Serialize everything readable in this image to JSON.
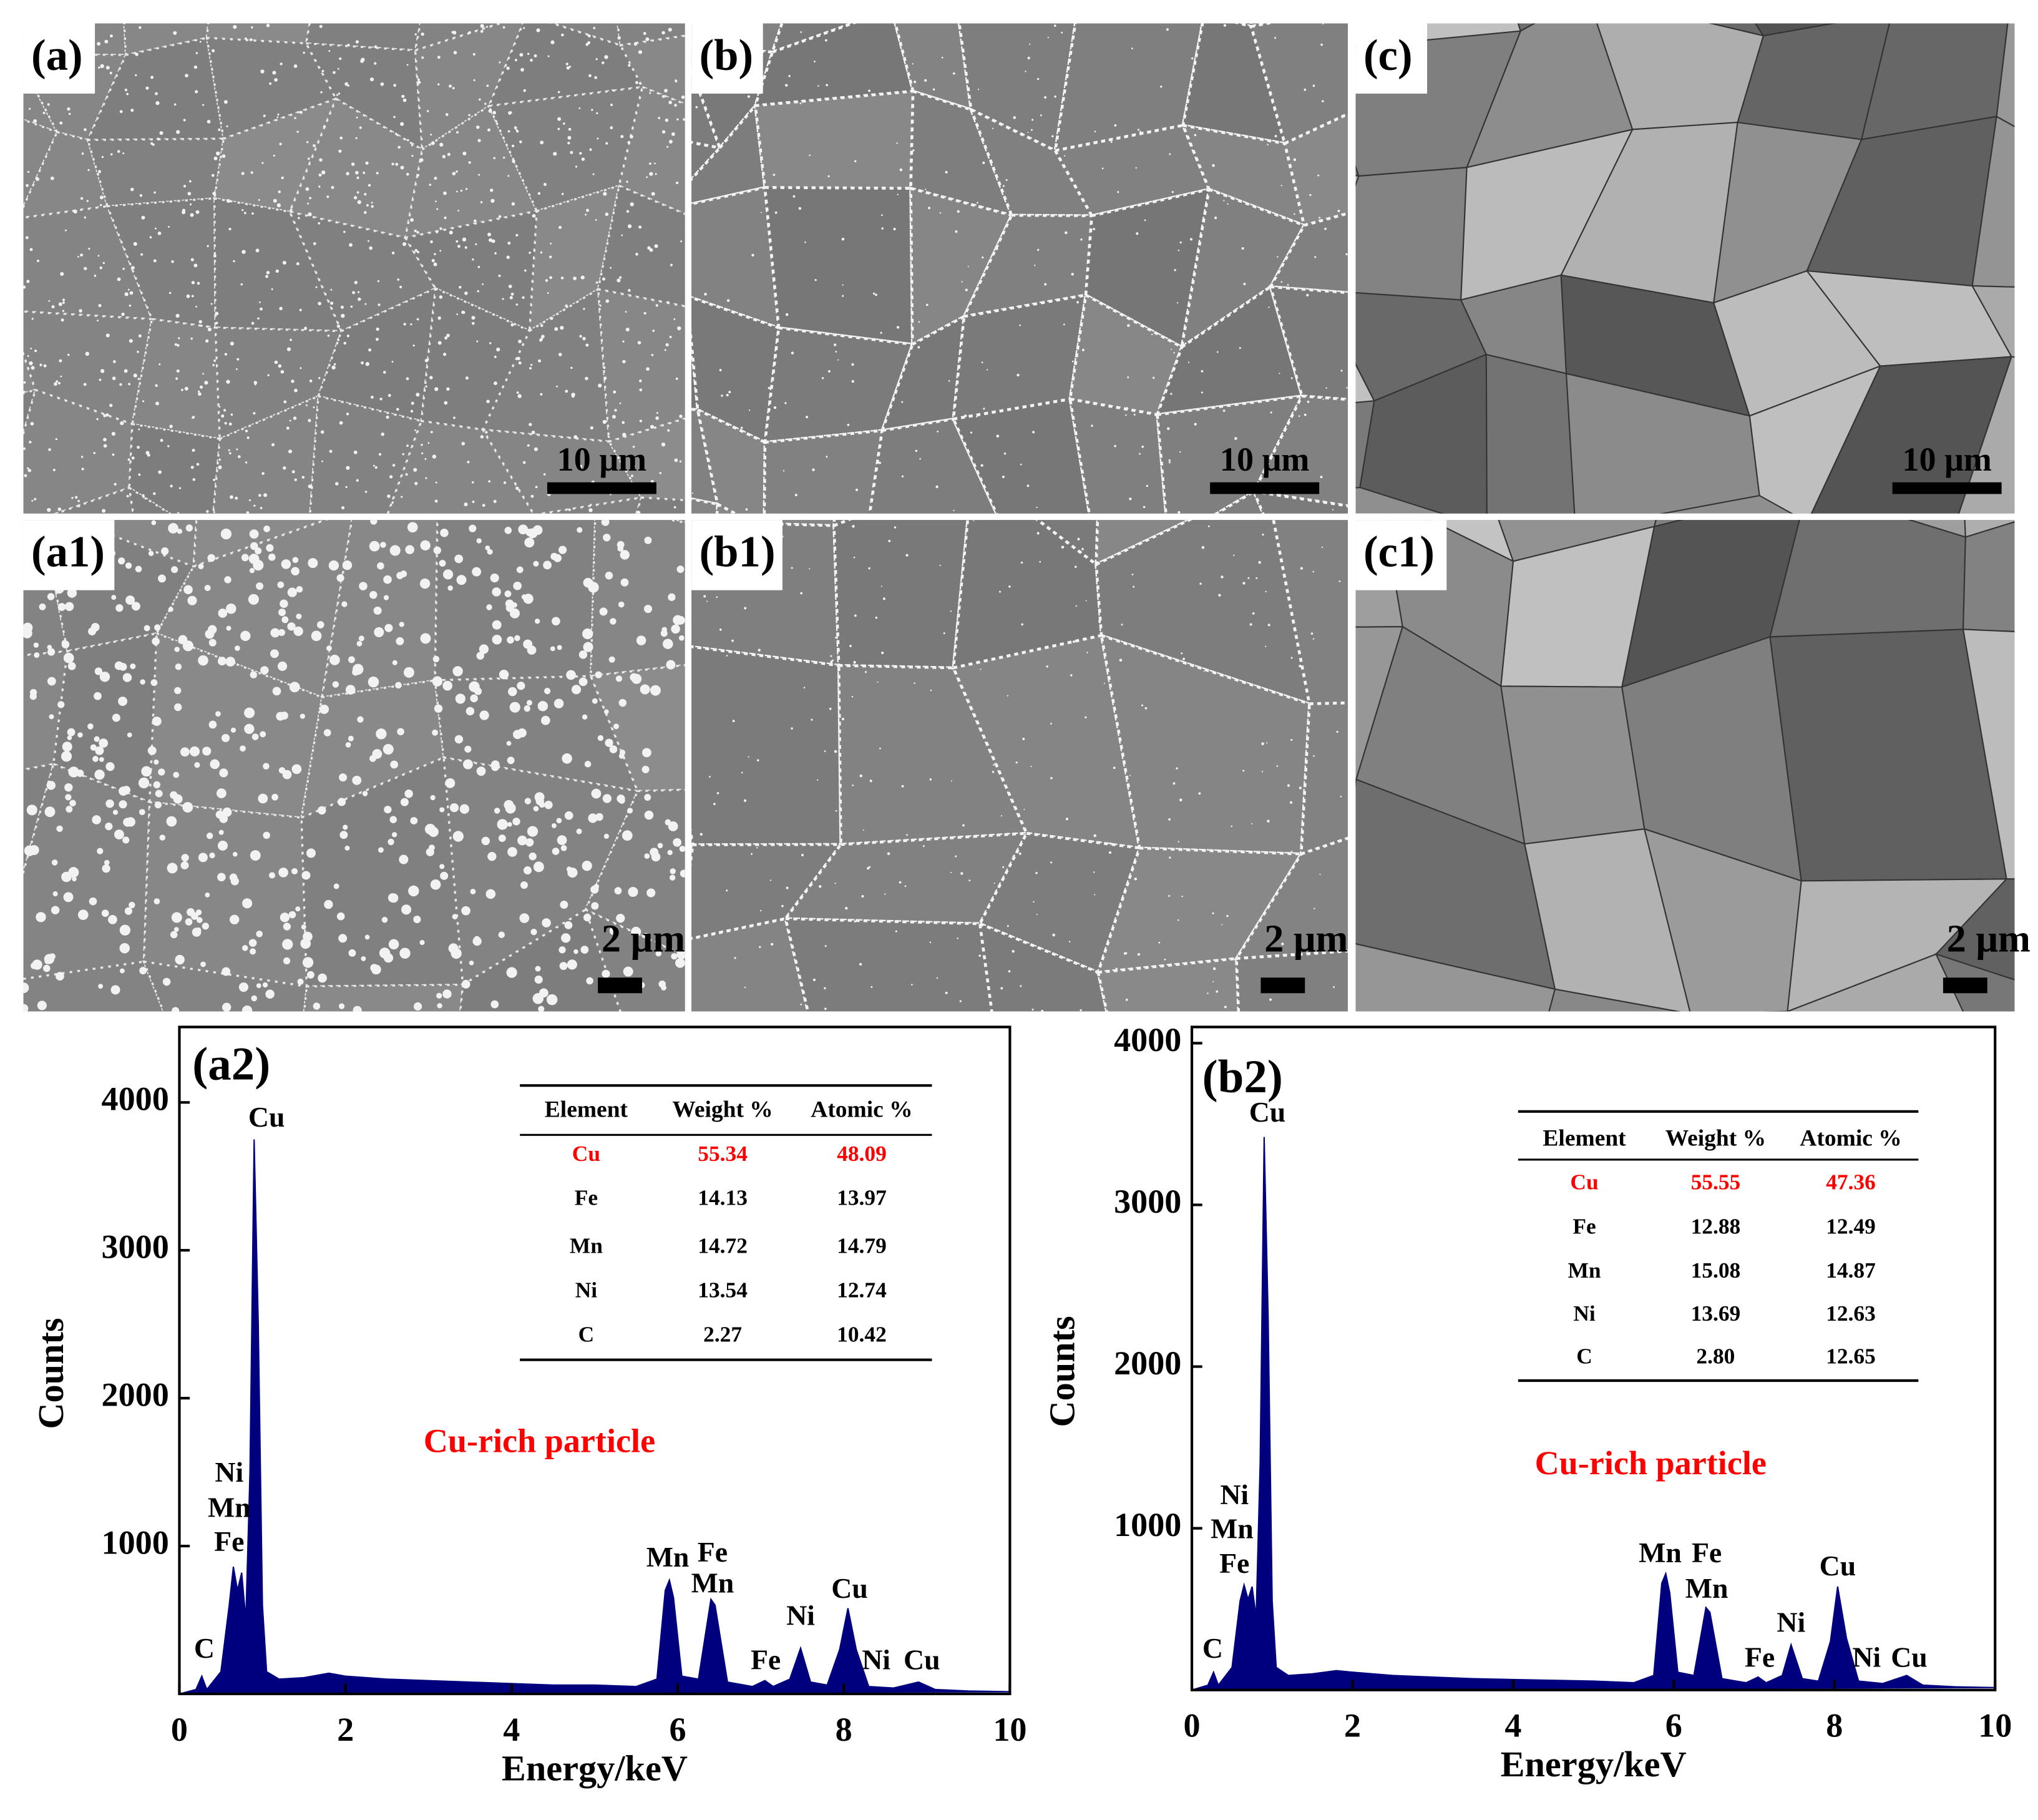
{
  "figure_panels": [
    {
      "label": "(a)",
      "scale_bar": "10 μm"
    },
    {
      "label": "(b)",
      "scale_bar": "10 μm"
    },
    {
      "label": "(c)",
      "scale_bar": "10 μm"
    },
    {
      "label": "(a1)",
      "scale_bar": "2 μm"
    },
    {
      "label": "(b1)",
      "scale_bar": "2 μm"
    },
    {
      "label": "(c1)",
      "scale_bar": "2 μm"
    }
  ],
  "chart_data": [
    {
      "type": "area",
      "panel_label": "(a2)",
      "x_label": "Energy/keV",
      "y_label": "Counts",
      "annotation": "Cu-rich particle",
      "annotation_color": "#ff0000",
      "color": "#00007f",
      "xlim": [
        0,
        10
      ],
      "xticks": [
        0,
        2,
        4,
        6,
        8,
        10
      ],
      "ylim": [
        0,
        4510
      ],
      "yticks": [
        1000,
        2000,
        3000,
        4000
      ],
      "x": [
        0,
        0.2,
        0.27,
        0.33,
        0.5,
        0.6,
        0.65,
        0.7,
        0.75,
        0.8,
        0.85,
        0.9,
        0.95,
        1.0,
        1.05,
        1.2,
        1.5,
        1.8,
        2.0,
        2.5,
        3.0,
        3.5,
        4.0,
        4.5,
        5.0,
        5.5,
        5.75,
        5.85,
        5.9,
        5.95,
        6.05,
        6.25,
        6.4,
        6.45,
        6.6,
        6.9,
        7.05,
        7.15,
        7.35,
        7.48,
        7.6,
        7.8,
        7.95,
        8.05,
        8.15,
        8.3,
        8.6,
        8.9,
        9.1,
        9.5,
        10
      ],
      "values": [
        0,
        30,
        120,
        30,
        150,
        600,
        860,
        700,
        820,
        500,
        1500,
        3750,
        2500,
        600,
        150,
        100,
        110,
        140,
        120,
        100,
        90,
        80,
        70,
        60,
        60,
        50,
        100,
        700,
        770,
        650,
        120,
        100,
        640,
        600,
        80,
        50,
        90,
        50,
        100,
        310,
        80,
        60,
        300,
        580,
        300,
        50,
        40,
        80,
        30,
        20,
        15
      ],
      "peak_labels": [
        "C",
        "Ni",
        "Mn",
        "Fe",
        "Cu",
        "Mn",
        "Fe",
        "Mn",
        "Fe",
        "Ni",
        "Cu",
        "Ni",
        "Cu"
      ],
      "highlight_row": 0,
      "highlight_color": "#ff0000",
      "table": {
        "header": [
          "Element",
          "Weight %",
          "Atomic %"
        ],
        "rows": [
          [
            "Cu",
            "55.34",
            "48.09"
          ],
          [
            "Fe",
            "14.13",
            "13.97"
          ],
          [
            "Mn",
            "14.72",
            "14.79"
          ],
          [
            "Ni",
            "13.54",
            "12.74"
          ],
          [
            "C",
            "2.27",
            "10.42"
          ]
        ]
      }
    },
    {
      "type": "area",
      "panel_label": "(b2)",
      "x_label": "Energy/keV",
      "y_label": "Counts",
      "annotation": "Cu-rich particle",
      "annotation_color": "#ff0000",
      "color": "#00007f",
      "xlim": [
        0,
        10
      ],
      "xticks": [
        0,
        2,
        4,
        6,
        8,
        10
      ],
      "ylim": [
        0,
        4100
      ],
      "yticks": [
        1000,
        2000,
        3000,
        4000
      ],
      "x": [
        0,
        0.2,
        0.27,
        0.33,
        0.5,
        0.6,
        0.65,
        0.7,
        0.75,
        0.8,
        0.85,
        0.9,
        0.95,
        1.0,
        1.05,
        1.2,
        1.5,
        1.8,
        2.0,
        2.5,
        3.0,
        3.5,
        4.0,
        4.5,
        5.0,
        5.5,
        5.75,
        5.85,
        5.9,
        5.95,
        6.05,
        6.25,
        6.4,
        6.45,
        6.6,
        6.9,
        7.05,
        7.15,
        7.35,
        7.46,
        7.6,
        7.8,
        7.95,
        8.04,
        8.15,
        8.3,
        8.6,
        8.9,
        9.1,
        9.5,
        10
      ],
      "values": [
        0,
        30,
        110,
        30,
        140,
        550,
        650,
        560,
        640,
        450,
        1400,
        3420,
        2300,
        550,
        140,
        90,
        100,
        120,
        110,
        90,
        80,
        70,
        65,
        60,
        55,
        45,
        90,
        660,
        720,
        600,
        110,
        90,
        510,
        480,
        70,
        45,
        80,
        45,
        90,
        280,
        70,
        55,
        300,
        640,
        320,
        55,
        40,
        90,
        30,
        20,
        15
      ],
      "peak_labels": [
        "C",
        "Ni",
        "Mn",
        "Fe",
        "Cu",
        "Mn",
        "Fe",
        "Mn",
        "Fe",
        "Ni",
        "Cu",
        "Ni",
        "Cu"
      ],
      "highlight_row": 0,
      "highlight_color": "#ff0000",
      "table": {
        "header": [
          "Element",
          "Weight %",
          "Atomic %"
        ],
        "rows": [
          [
            "Cu",
            "55.55",
            "47.36"
          ],
          [
            "Fe",
            "12.88",
            "12.49"
          ],
          [
            "Mn",
            "15.08",
            "14.87"
          ],
          [
            "Ni",
            "13.69",
            "12.63"
          ],
          [
            "C",
            "2.80",
            "12.65"
          ]
        ]
      }
    }
  ]
}
